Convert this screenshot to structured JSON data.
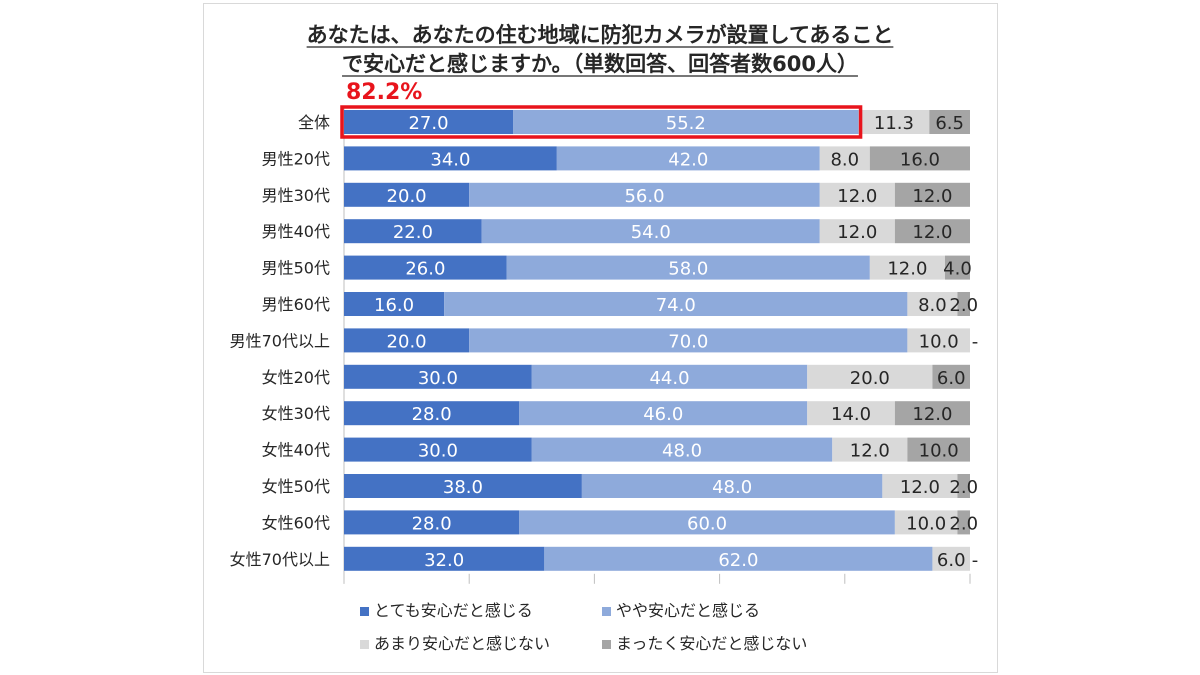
{
  "chart_data": {
    "type": "bar",
    "orientation": "horizontal",
    "stacked": true,
    "title": [
      "あなたは、あなたの住む地域に防犯カメラが設置してあること",
      "で安心だと感じますか。（単数回答、回答者数600人）"
    ],
    "highlight_label": "82.2%",
    "categories": [
      "全体",
      "男性20代",
      "男性30代",
      "男性40代",
      "男性50代",
      "男性60代",
      "男性70代以上",
      "女性20代",
      "女性30代",
      "女性40代",
      "女性50代",
      "女性60代",
      "女性70代以上"
    ],
    "series": [
      {
        "name": "とても安心だと感じる",
        "color": "#4472c4",
        "values": [
          27.0,
          34.0,
          20.0,
          22.0,
          26.0,
          16.0,
          20.0,
          30.0,
          28.0,
          30.0,
          38.0,
          28.0,
          32.0
        ],
        "labels": [
          "27.0",
          "34.0",
          "20.0",
          "22.0",
          "26.0",
          "16.0",
          "20.0",
          "30.0",
          "28.0",
          "30.0",
          "38.0",
          "28.0",
          "32.0"
        ]
      },
      {
        "name": "やや安心だと感じる",
        "color": "#8eaadb",
        "values": [
          55.2,
          42.0,
          56.0,
          54.0,
          58.0,
          74.0,
          70.0,
          44.0,
          46.0,
          48.0,
          48.0,
          60.0,
          62.0
        ],
        "labels": [
          "55.2",
          "42.0",
          "56.0",
          "54.0",
          "58.0",
          "74.0",
          "70.0",
          "44.0",
          "46.0",
          "48.0",
          "48.0",
          "60.0",
          "62.0"
        ]
      },
      {
        "name": "あまり安心だと感じない",
        "color": "#d9d9d9",
        "values": [
          11.3,
          8.0,
          12.0,
          12.0,
          12.0,
          8.0,
          10.0,
          20.0,
          14.0,
          12.0,
          12.0,
          10.0,
          6.0
        ],
        "labels": [
          "11.3",
          "8.0",
          "12.0",
          "12.0",
          "12.0",
          "8.0",
          "10.0",
          "20.0",
          "14.0",
          "12.0",
          "12.0",
          "10.0",
          "6.0"
        ]
      },
      {
        "name": "まったく安心だと感じない",
        "color": "#a5a5a5",
        "values": [
          6.5,
          16.0,
          12.0,
          12.0,
          4.0,
          2.0,
          0,
          6.0,
          12.0,
          10.0,
          2.0,
          2.0,
          0
        ],
        "labels": [
          "6.5",
          "16.0",
          "12.0",
          "12.0",
          "4.0",
          "2.0",
          "-",
          "6.0",
          "12.0",
          "10.0",
          "2.0",
          "2.0",
          "-"
        ]
      }
    ],
    "xlim": [
      0,
      100
    ],
    "grid": false,
    "legend_position": "bottom"
  }
}
